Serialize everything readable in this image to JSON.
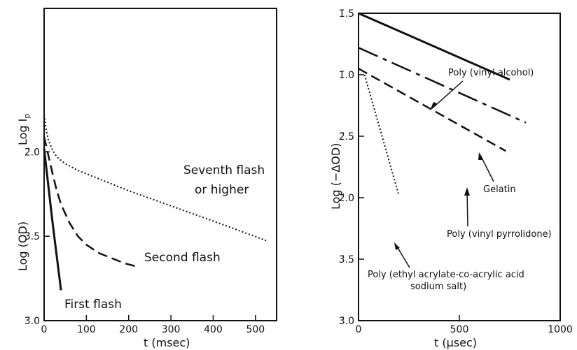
{
  "chart_data": [
    {
      "type": "line",
      "title": "",
      "xlabel": "t (msec)",
      "ylabel_upper": "Log I",
      "ylabel_upper_sub": "p",
      "ylabel_lower": "Log (OD)",
      "xlim": [
        0,
        550
      ],
      "ylim": [
        -3.0,
        -1.15
      ],
      "x_ticks": [
        0,
        100,
        200,
        300,
        400,
        500
      ],
      "x_tick_labels": [
        "0",
        "100",
        "200",
        "300",
        "400",
        "500"
      ],
      "y_ticks": [
        -2.0,
        -2.5,
        -3.0
      ],
      "y_tick_labels": [
        "2̄.0",
        "3̄.5",
        "3̄.0"
      ],
      "series": [
        {
          "name": "First flash",
          "style": "solid",
          "x": [
            0,
            10,
            20,
            30,
            40
          ],
          "y": [
            -1.98,
            -2.2,
            -2.42,
            -2.62,
            -2.82
          ]
        },
        {
          "name": "Second flash",
          "style": "dashed",
          "x": [
            0,
            10,
            20,
            30,
            40,
            60,
            80,
            100,
            130,
            160,
            190,
            220
          ],
          "y": [
            -1.91,
            -2.02,
            -2.13,
            -2.23,
            -2.31,
            -2.42,
            -2.5,
            -2.55,
            -2.6,
            -2.63,
            -2.66,
            -2.68
          ]
        },
        {
          "name": "Seventh flash or higher",
          "name_line1": "Seventh flash",
          "name_line2": "or higher",
          "style": "dotted",
          "x": [
            0,
            5,
            10,
            20,
            30,
            50,
            80,
            120,
            200,
            300,
            400,
            530
          ],
          "y": [
            -1.78,
            -1.87,
            -1.93,
            -1.99,
            -2.03,
            -2.07,
            -2.11,
            -2.15,
            -2.23,
            -2.32,
            -2.41,
            -2.53
          ]
        }
      ]
    },
    {
      "type": "line",
      "title": "",
      "xlabel": "t (μsec)",
      "ylabel": "Log (−ΔOD)",
      "xlim": [
        0,
        1000
      ],
      "ylim": [
        -3.0,
        -0.5
      ],
      "x_ticks": [
        0,
        500,
        1000
      ],
      "x_tick_labels": [
        "0",
        "500",
        "1000"
      ],
      "y_ticks": [
        -0.5,
        -1.0,
        -1.5,
        -2.0,
        -2.5,
        -3.0
      ],
      "y_tick_labels": [
        "1̄.5",
        "1̄.0",
        "2̄.5",
        "2̄.0",
        "3̄.5",
        "3̄.0"
      ],
      "series": [
        {
          "name": "Poly (vinyl alcohol)",
          "style": "solid",
          "x": [
            0,
            750
          ],
          "y": [
            -0.5,
            -1.04
          ]
        },
        {
          "name": "Gelatin",
          "style": "longdash-dot",
          "x": [
            0,
            830
          ],
          "y": [
            -0.78,
            -1.39
          ]
        },
        {
          "name": "Poly (vinyl pyrrolidone)",
          "style": "dashed",
          "x": [
            0,
            730
          ],
          "y": [
            -0.95,
            -1.62
          ]
        },
        {
          "name": "Poly (ethyl acrylate-co-acrylic acid sodium salt)",
          "name_line1": "Poly (ethyl acrylate-co-acrylic acid",
          "name_line2": "sodium salt)",
          "style": "dotted",
          "x": [
            30,
            200
          ],
          "y": [
            -1.0,
            -1.98
          ]
        }
      ]
    }
  ]
}
